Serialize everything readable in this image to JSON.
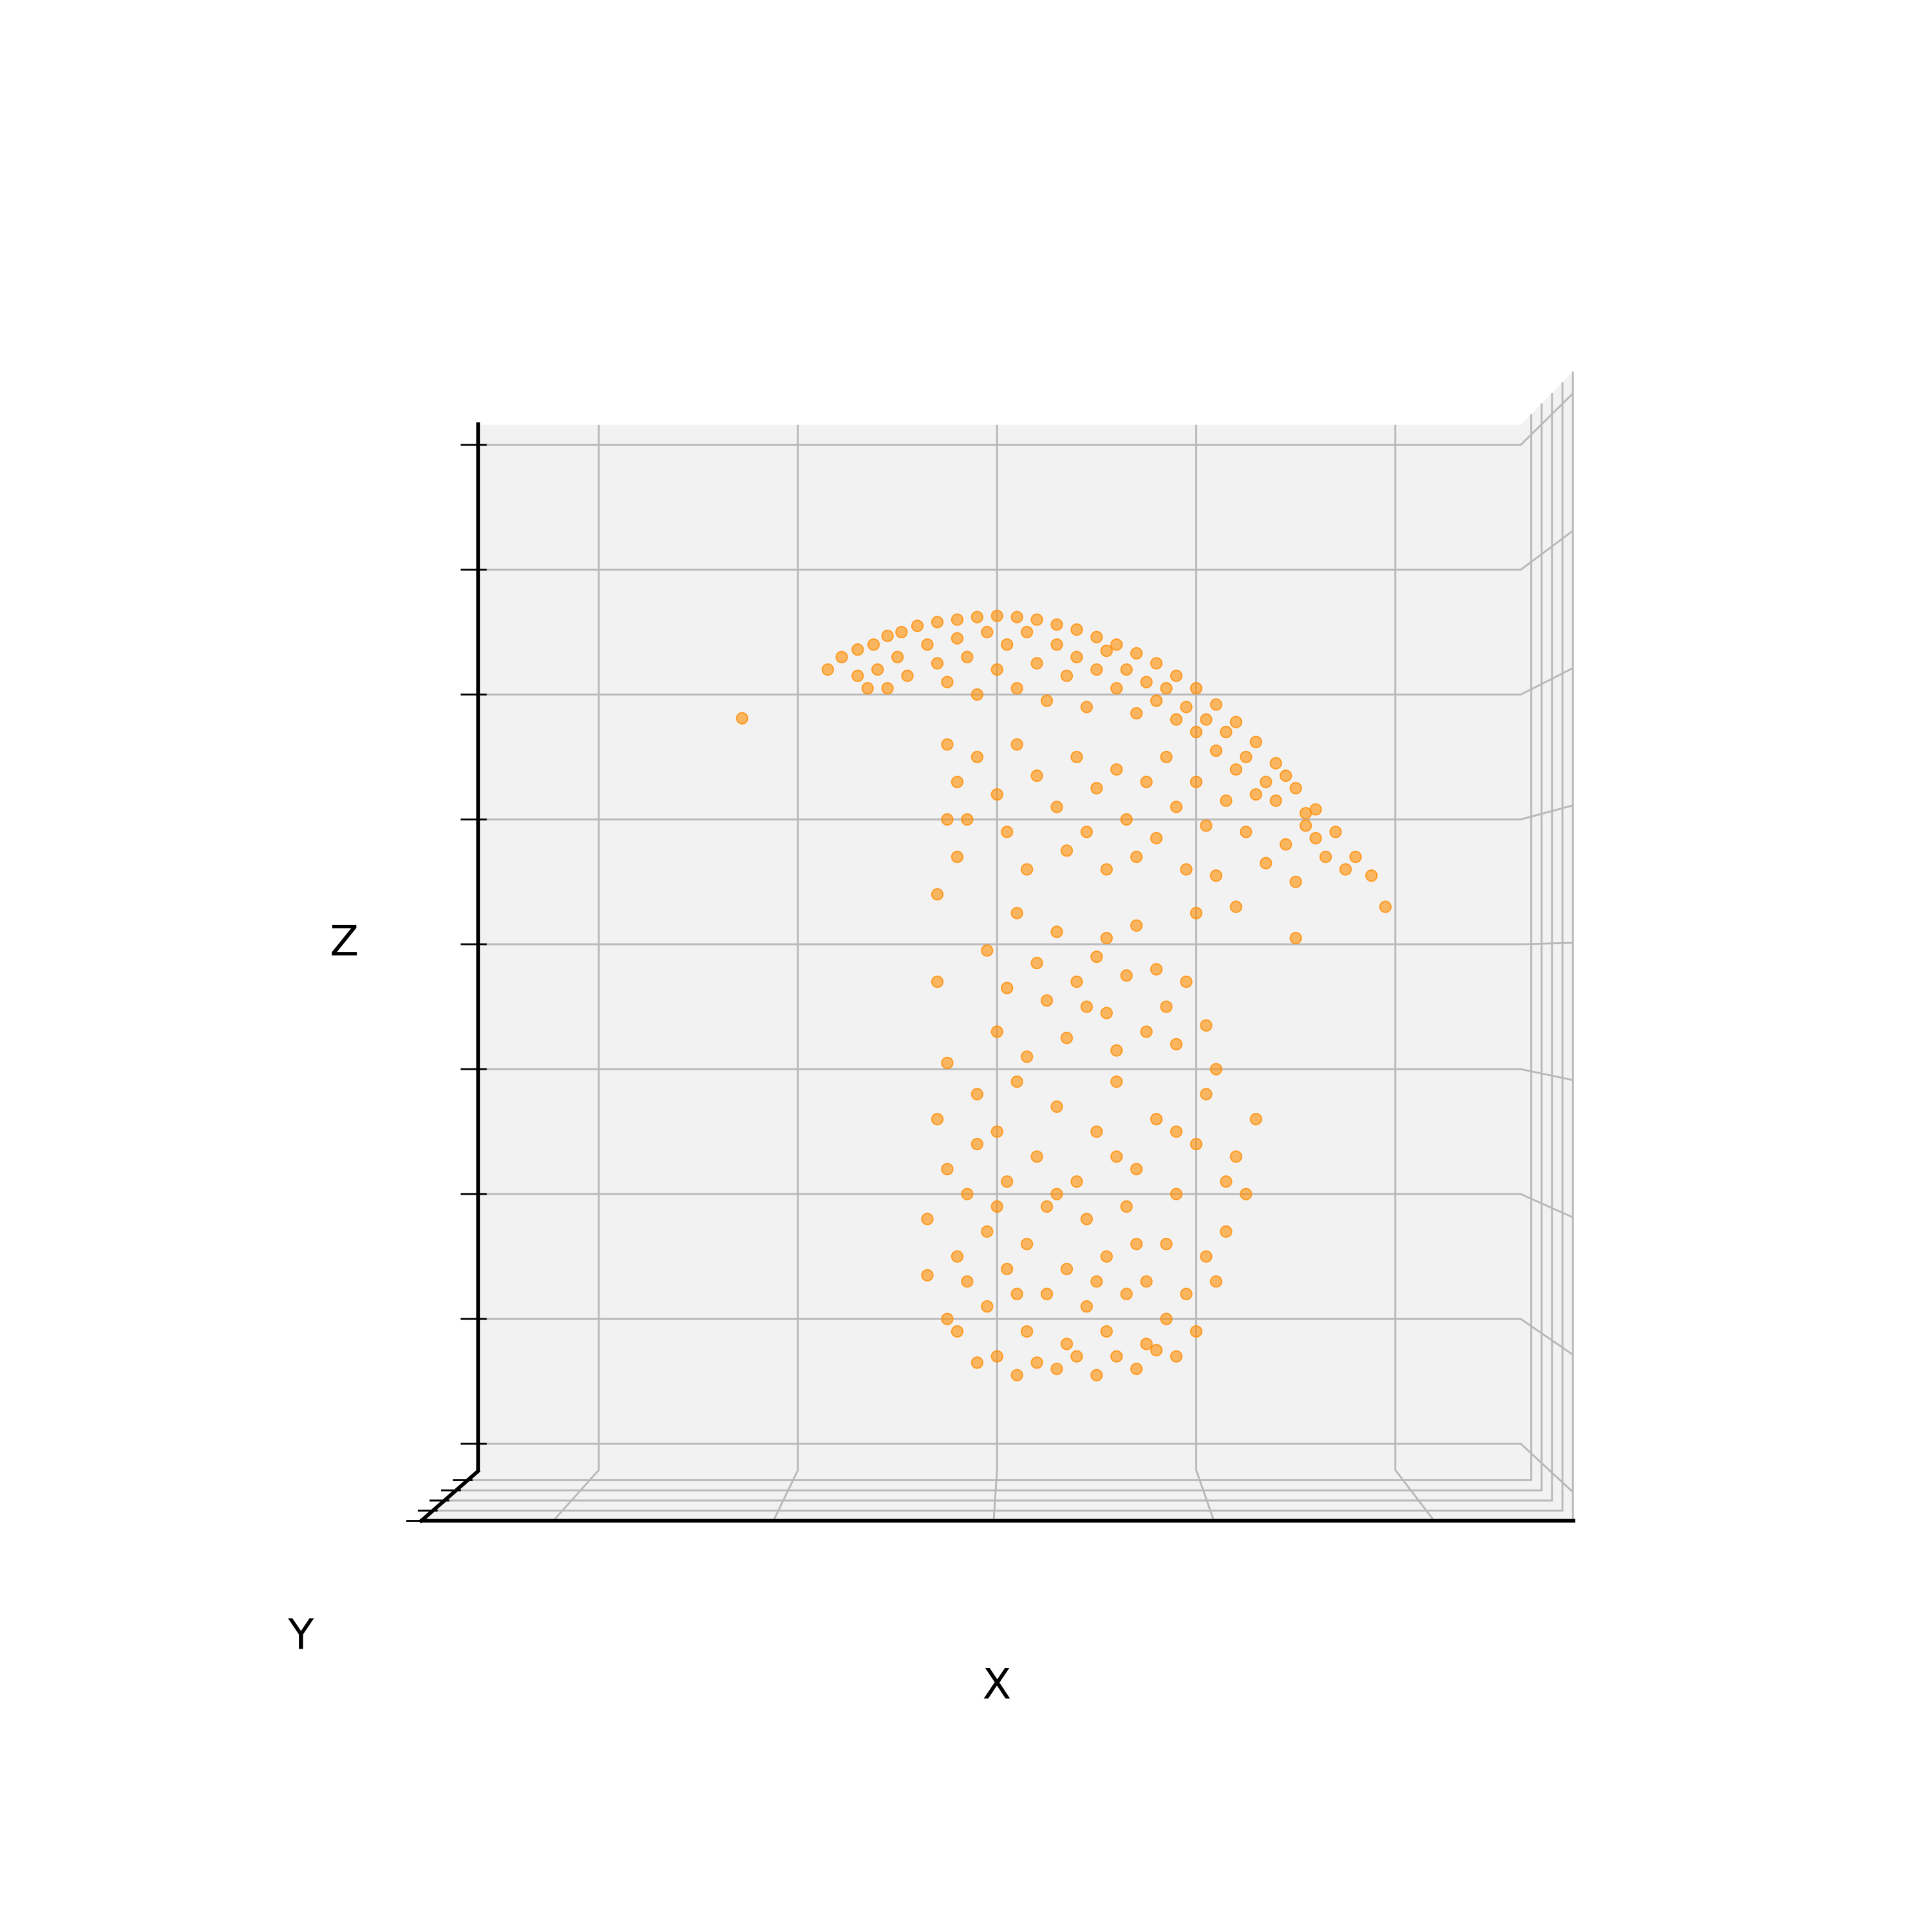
{
  "chart_data": {
    "type": "scatter3d",
    "xlabel": "X",
    "ylabel": "Y",
    "zlabel": "Z",
    "color": "#ff8c00",
    "xlim": [
      -2.6,
      2.63
    ],
    "xticks": [
      -2,
      -1,
      0,
      1,
      2
    ],
    "ylim": [
      0,
      1
    ],
    "yticks": [
      0.2,
      0.4,
      0.6,
      0.8,
      1
    ],
    "zlim": [
      -0.21,
      8.16
    ],
    "zticks": [
      0,
      1,
      2,
      3,
      4,
      5,
      6,
      7,
      8
    ],
    "x": [
      -0.85,
      -0.78,
      -0.7,
      -0.62,
      -0.55,
      -0.48,
      -0.4,
      -0.3,
      -0.2,
      -0.1,
      0,
      0.1,
      0.2,
      0.3,
      0.4,
      0.5,
      0.6,
      0.7,
      0.8,
      0.9,
      1.0,
      1.1,
      1.2,
      1.3,
      1.4,
      1.5,
      1.6,
      1.7,
      1.8,
      1.88,
      1.95,
      -0.6,
      -0.5,
      -0.45,
      -0.35,
      -0.3,
      -0.25,
      -0.2,
      -0.15,
      -0.1,
      -0.05,
      0,
      0.05,
      0.1,
      0.15,
      0.2,
      0.25,
      0.3,
      0.35,
      0.4,
      0.45,
      0.5,
      0.55,
      0.6,
      0.65,
      0.7,
      0.75,
      0.8,
      0.85,
      0.9,
      0.95,
      1.0,
      1.05,
      1.1,
      1.15,
      1.2,
      1.25,
      1.35,
      1.4,
      1.45,
      1.55,
      1.6,
      1.65,
      1.75,
      -0.7,
      -0.65,
      -0.55,
      -1.28,
      -0.25,
      -0.2,
      -0.15,
      -0.2,
      -0.1,
      0,
      0.05,
      0.1,
      0.15,
      0.2,
      0.3,
      0.35,
      0.4,
      0.45,
      0.5,
      0.55,
      0.6,
      0.65,
      0.7,
      0.75,
      0.8,
      0.85,
      0.9,
      0.95,
      1.0,
      1.05,
      1.1,
      1.15,
      1.25,
      1.3,
      1.35,
      1.45,
      1.5,
      1.55,
      1.2,
      1.0,
      1.5,
      0.55,
      -0.3,
      -0.25,
      -0.3,
      -0.05,
      0.05,
      0.1,
      0.2,
      0.25,
      0.3,
      0.4,
      0.5,
      0.55,
      0.65,
      0.7,
      0.8,
      0.85,
      0.95,
      0.0,
      0.15,
      0.35,
      0.6,
      0.9,
      1.05,
      -0.25,
      1.1,
      0.45,
      0.75,
      -0.3,
      -0.25,
      -0.35,
      -0.2,
      -0.25,
      -0.2,
      -0.1,
      0,
      0.1,
      0.3,
      0.5,
      0.7,
      0.9,
      1.0,
      1.1,
      1.15,
      1.25,
      1.3,
      1.2,
      1.05,
      -0.1,
      0,
      0.1,
      0.2,
      0.3,
      0.4,
      0.5,
      0.6,
      0.7,
      0.8,
      0.9,
      1.0,
      -0.15,
      -0.05,
      0.05,
      0.15,
      0.25,
      0.35,
      0.45,
      0.55,
      0.65,
      0.75,
      0.85,
      0.95,
      1.05,
      -0.15,
      -0.05,
      0.05,
      0.15,
      0.25,
      0.35,
      0.45,
      0.55,
      0.65,
      0.75,
      0.85,
      0.2,
      0.4,
      0.6,
      0.8,
      -0.35,
      0.0,
      0.3,
      0.6,
      0.9,
      0.1,
      0.5,
      0.7,
      -0.1,
      1.15
    ],
    "z": [
      6.2,
      6.3,
      6.36,
      6.4,
      6.47,
      6.5,
      6.55,
      6.58,
      6.6,
      6.62,
      6.63,
      6.62,
      6.6,
      6.56,
      6.52,
      6.46,
      6.4,
      6.33,
      6.25,
      6.15,
      6.05,
      5.92,
      5.78,
      5.62,
      5.45,
      5.25,
      5.08,
      4.9,
      4.7,
      4.55,
      4.3,
      6.2,
      6.3,
      6.15,
      6.4,
      6.25,
      6.1,
      6.45,
      6.3,
      6.0,
      6.5,
      6.2,
      6.4,
      6.05,
      6.5,
      6.25,
      5.95,
      6.4,
      6.15,
      6.3,
      5.9,
      6.2,
      6.35,
      6.05,
      6.2,
      5.85,
      6.1,
      5.95,
      6.05,
      5.8,
      5.9,
      5.7,
      5.8,
      5.55,
      5.7,
      5.4,
      5.5,
      5.3,
      5.15,
      5.35,
      4.95,
      4.85,
      4.7,
      4.6,
      6.15,
      6.05,
      6.05,
      5.81,
      5.6,
      5.3,
      5.0,
      4.7,
      5.5,
      5.2,
      4.9,
      5.6,
      4.6,
      5.35,
      5.1,
      4.75,
      5.5,
      4.9,
      5.25,
      4.6,
      5.4,
      5.0,
      4.7,
      5.3,
      4.85,
      5.5,
      5.1,
      4.6,
      5.3,
      4.95,
      4.55,
      5.15,
      4.9,
      5.2,
      4.65,
      4.8,
      4.5,
      5.05,
      4.3,
      4.25,
      4.05,
      4.05,
      4.4,
      5.0,
      3.7,
      3.95,
      3.65,
      4.25,
      3.85,
      3.55,
      4.1,
      3.7,
      3.9,
      3.45,
      3.75,
      4.15,
      3.8,
      3.5,
      3.7,
      3.3,
      3.1,
      3.25,
      3.15,
      3.2,
      3.35,
      3.05,
      3.0,
      3.5,
      3.3,
      2.6,
      2.2,
      1.8,
      1.5,
      1.0,
      0.9,
      0.65,
      0.7,
      0.55,
      0.6,
      0.55,
      0.6,
      0.7,
      0.9,
      1.3,
      1.7,
      2.0,
      2.6,
      2.3,
      2.8,
      2.8,
      2.5,
      2.9,
      2.3,
      2.7,
      2.1,
      2.5,
      2.9,
      2.2,
      2.6,
      2.0,
      2.4,
      2.0,
      1.7,
      2.1,
      1.6,
      1.9,
      1.4,
      1.8,
      1.5,
      1.9,
      1.3,
      1.6,
      1.2,
      1.5,
      1.3,
      1.1,
      1.4,
      0.9,
      1.2,
      0.8,
      1.1,
      0.9,
      1.2,
      0.8,
      1.0,
      0.65,
      0.7,
      0.7,
      0.75,
      1.35,
      1.9,
      2.0,
      2.3,
      2.5,
      1.2,
      1.3,
      1.6,
      2.4,
      2.1
    ]
  }
}
